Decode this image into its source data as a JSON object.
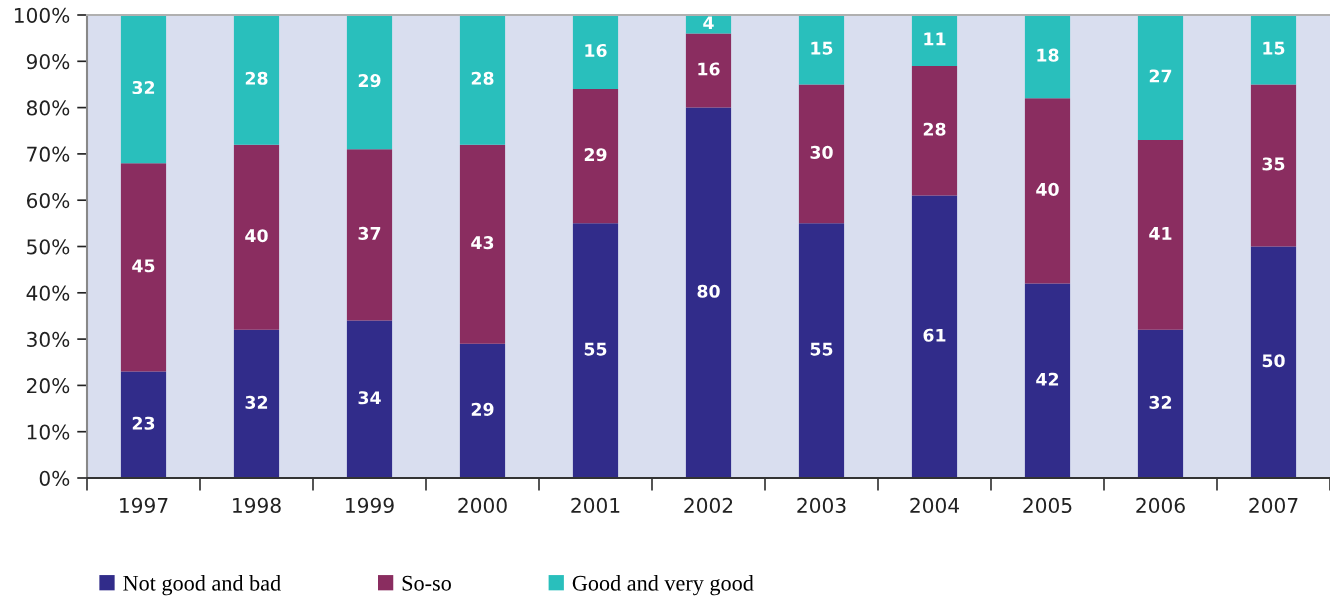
{
  "chart_data": {
    "type": "bar",
    "stacked": true,
    "categories": [
      "1997",
      "1998",
      "1999",
      "2000",
      "2001",
      "2002",
      "2003",
      "2004",
      "2005",
      "2006",
      "2007"
    ],
    "series": [
      {
        "name": "Not good and bad",
        "color": "#312c8a",
        "values": [
          23,
          32,
          34,
          29,
          55,
          80,
          55,
          61,
          42,
          32,
          50
        ]
      },
      {
        "name": "So-so",
        "color": "#8a2d60",
        "values": [
          45,
          40,
          37,
          43,
          29,
          16,
          30,
          28,
          40,
          41,
          35
        ]
      },
      {
        "name": "Good and very good",
        "color": "#29bfbc",
        "values": [
          32,
          28,
          29,
          28,
          16,
          4,
          15,
          11,
          18,
          27,
          15
        ]
      }
    ],
    "ylim": [
      0,
      100
    ],
    "yticks": [
      {
        "value": 0,
        "label": "0%"
      },
      {
        "value": 10,
        "label": "10%"
      },
      {
        "value": 20,
        "label": "20%"
      },
      {
        "value": 30,
        "label": "30%"
      },
      {
        "value": 40,
        "label": "40%"
      },
      {
        "value": 50,
        "label": "50%"
      },
      {
        "value": 60,
        "label": "60%"
      },
      {
        "value": 70,
        "label": "70%"
      },
      {
        "value": 80,
        "label": "80%"
      },
      {
        "value": 90,
        "label": "90%"
      },
      {
        "value": 100,
        "label": "100%"
      }
    ],
    "data_labels": true,
    "grid": false,
    "legend": "bottom"
  }
}
